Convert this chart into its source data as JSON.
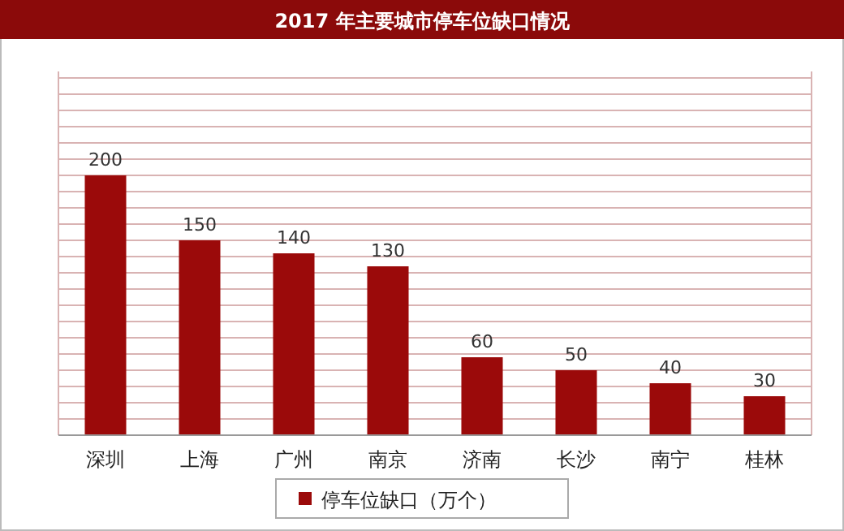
{
  "chart_data": {
    "type": "bar",
    "title": "2017 年主要城市停车位缺口情况",
    "categories": [
      "深圳",
      "上海",
      "广州",
      "南京",
      "济南",
      "长沙",
      "南宁",
      "桂林"
    ],
    "series": [
      {
        "name": "停车位缺口（万个）",
        "color": "#9b0a0a",
        "values": [
          200,
          150,
          140,
          130,
          60,
          50,
          40,
          30
        ]
      }
    ],
    "data_labels": true,
    "grid": true,
    "legend": "bottom"
  }
}
